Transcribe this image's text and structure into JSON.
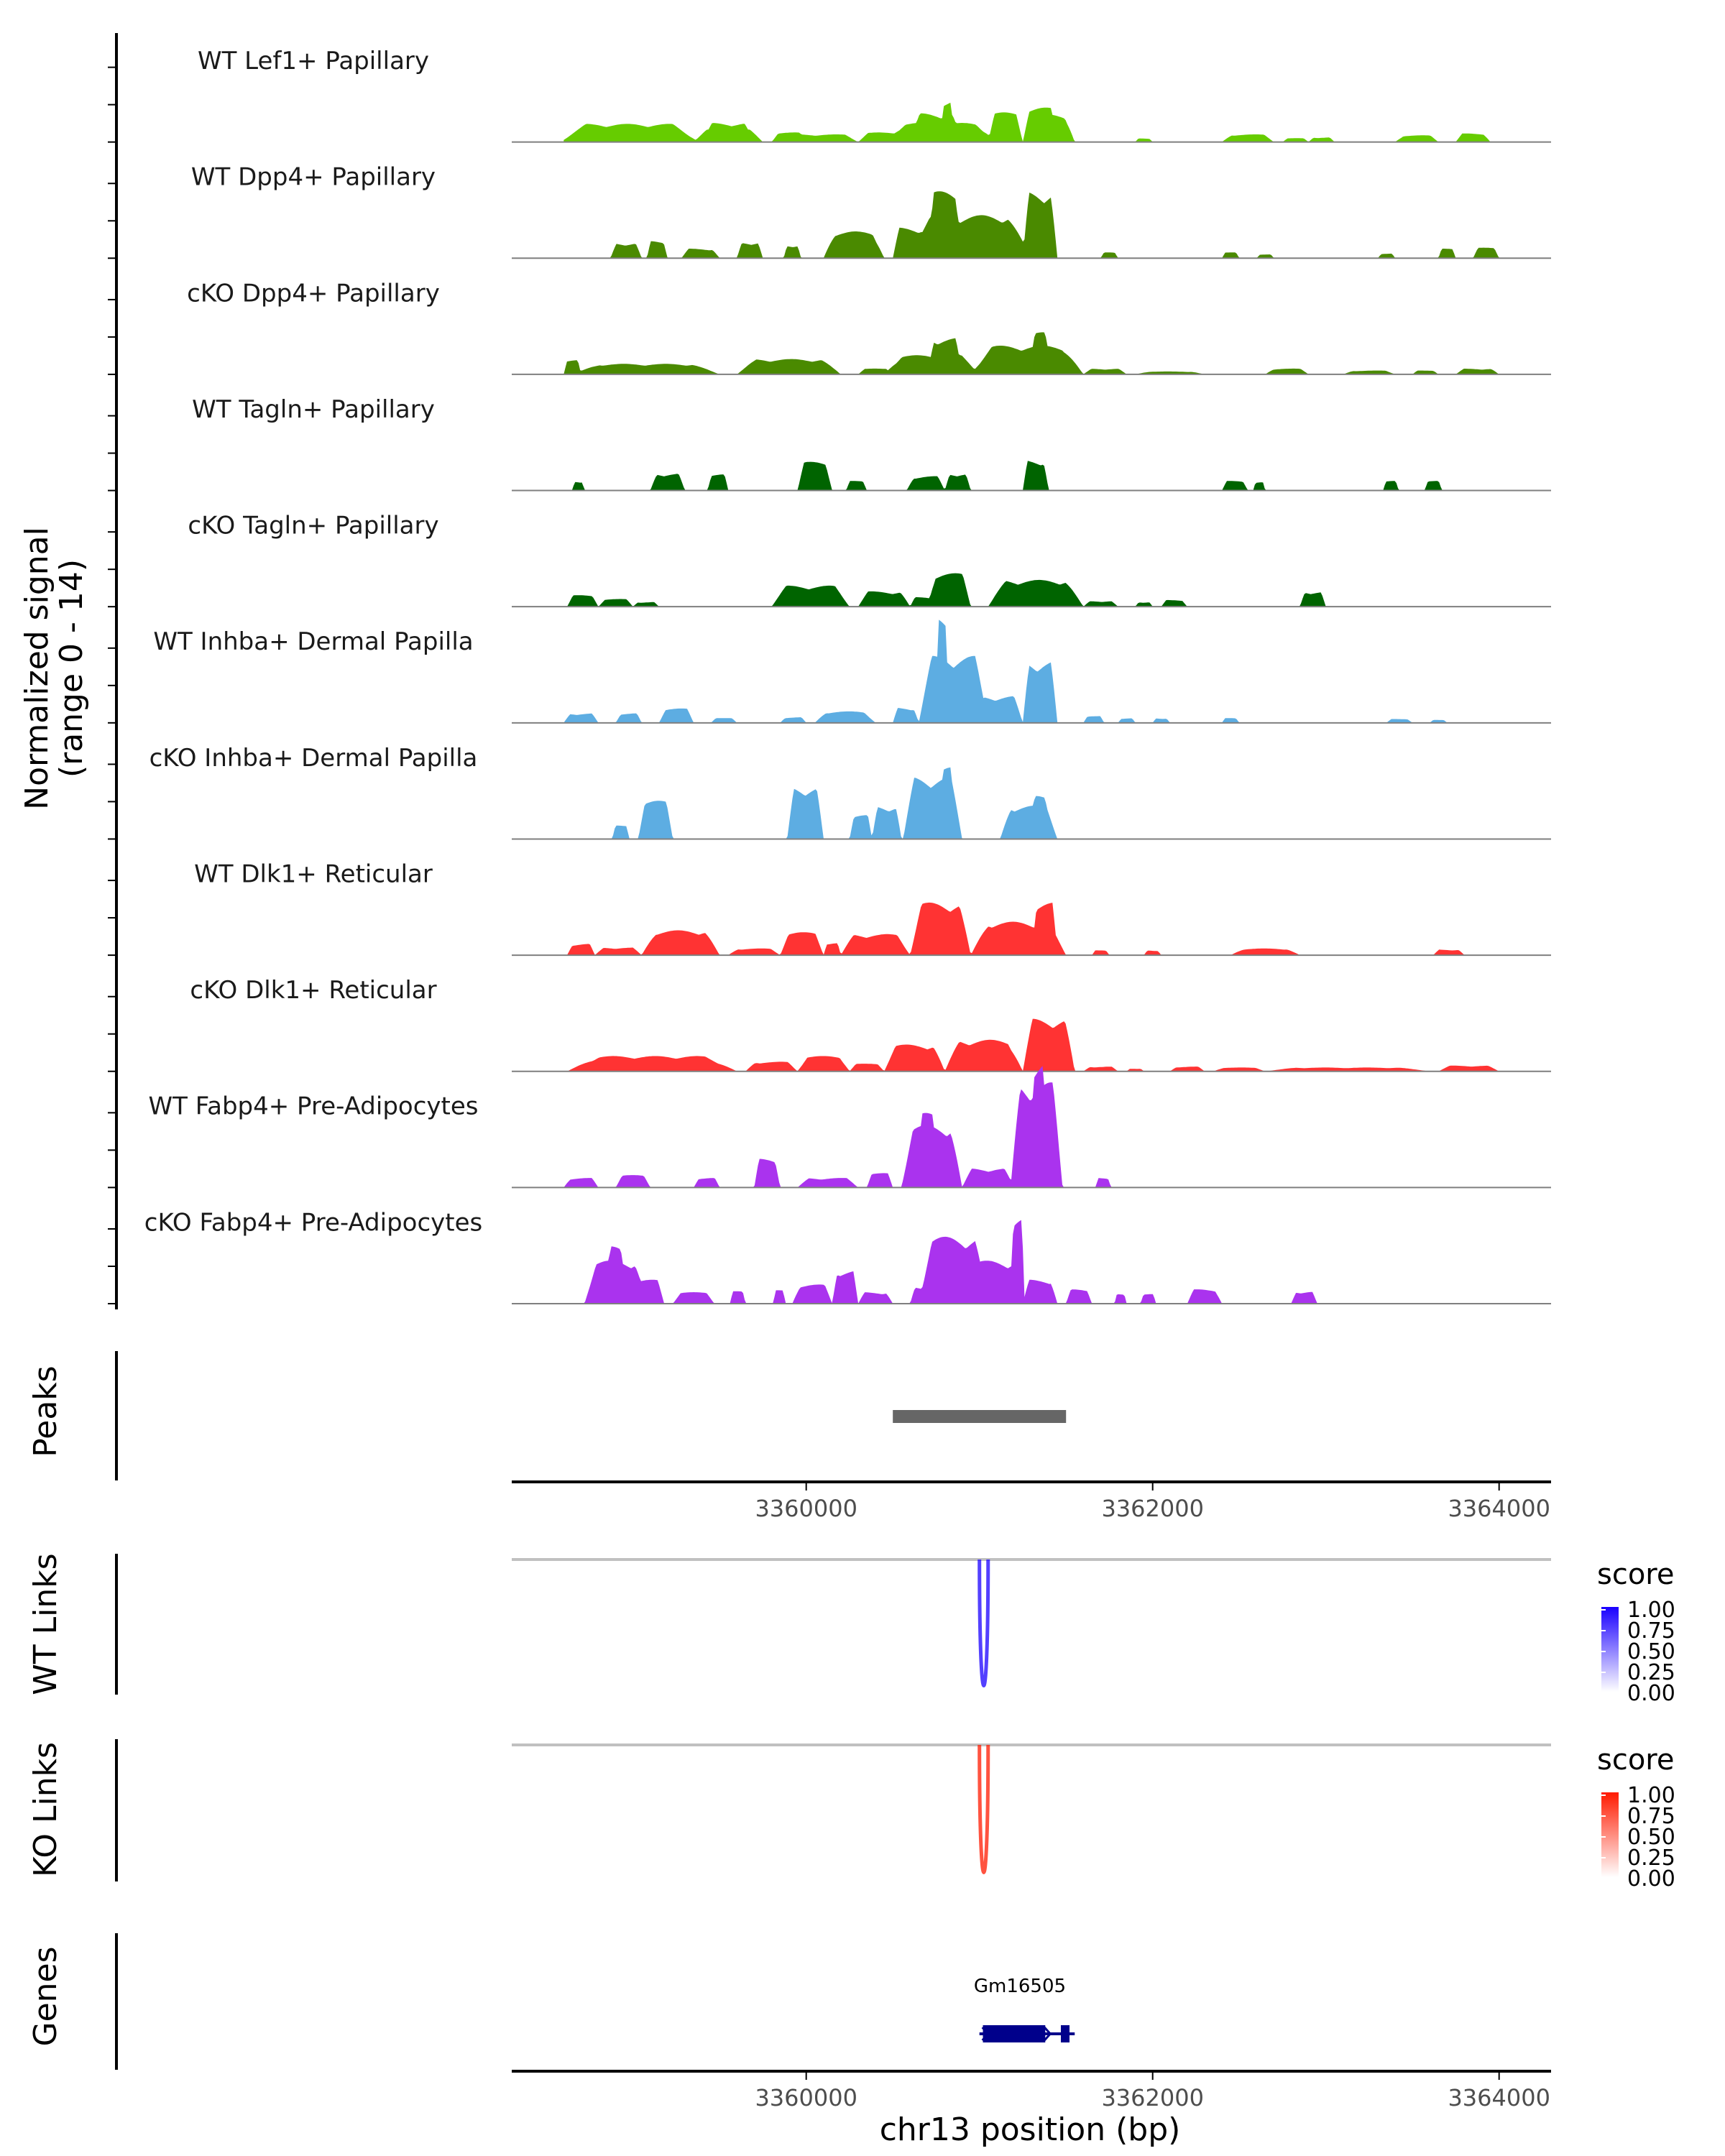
{
  "chart_data": {
    "type": "area",
    "title": "",
    "chromosome": "chr13",
    "xlabel": "chr13 position (bp)",
    "xlim": [
      3358300,
      3364300
    ],
    "xticks": [
      3360000,
      3362000,
      3364000
    ],
    "xtick_labels": [
      "3360000",
      "3362000",
      "3364000"
    ],
    "coverage": {
      "ylabel_line1": "Normalized signal",
      "ylabel_line2": "(range 0 - 14)",
      "ylim": [
        0,
        14
      ],
      "tracks": [
        {
          "name": "WT Lef1+ Papillary",
          "color": "#66CC00",
          "peaks": [
            [
              3358580,
              3359380,
              1.9
            ],
            [
              3359350,
              3359750,
              1.3
            ],
            [
              3359400,
              3359700,
              2.0
            ],
            [
              3359900,
              3360300,
              0.8
            ],
            [
              3359800,
              3360000,
              1.0
            ],
            [
              3360300,
              3360600,
              1.0
            ],
            [
              3360450,
              3361100,
              2.0
            ],
            [
              3360600,
              3360900,
              3.0
            ],
            [
              3360780,
              3360850,
              4.4
            ],
            [
              3361050,
              3361250,
              3.1
            ],
            [
              3361250,
              3361550,
              2.9
            ],
            [
              3361250,
              3361450,
              3.6
            ],
            [
              3361900,
              3362000,
              0.4
            ],
            [
              3362400,
              3362700,
              0.8
            ],
            [
              3362750,
              3362900,
              0.4
            ],
            [
              3362900,
              3363050,
              0.5
            ],
            [
              3363400,
              3363650,
              0.7
            ],
            [
              3363750,
              3363950,
              0.9
            ]
          ]
        },
        {
          "name": "WT Dpp4+ Papillary",
          "color": "#4A8A00",
          "peaks": [
            [
              3358870,
              3359050,
              1.6
            ],
            [
              3359080,
              3359200,
              1.8
            ],
            [
              3359280,
              3359500,
              1.0
            ],
            [
              3359600,
              3359750,
              1.7
            ],
            [
              3359870,
              3359970,
              1.4
            ],
            [
              3360100,
              3360450,
              2.8
            ],
            [
              3360500,
              3360700,
              3.2
            ],
            [
              3360580,
              3361300,
              4.5
            ],
            [
              3360700,
              3360900,
              7.0
            ],
            [
              3360900,
              3361100,
              3.7
            ],
            [
              3361250,
              3361450,
              7.0
            ],
            [
              3361700,
              3361800,
              0.6
            ],
            [
              3362400,
              3362500,
              0.6
            ],
            [
              3362600,
              3362700,
              0.4
            ],
            [
              3363300,
              3363400,
              0.5
            ],
            [
              3363650,
              3363750,
              1.0
            ],
            [
              3363850,
              3364000,
              1.1
            ]
          ]
        },
        {
          "name": "cKO Dpp4+ Papillary",
          "color": "#4A8A00",
          "peaks": [
            [
              3358600,
              3358700,
              1.5
            ],
            [
              3358650,
              3359500,
              1.1
            ],
            [
              3359600,
              3360200,
              1.6
            ],
            [
              3360300,
              3360500,
              0.6
            ],
            [
              3360450,
              3361000,
              2.0
            ],
            [
              3360700,
              3360900,
              3.8
            ],
            [
              3360950,
              3361600,
              3.0
            ],
            [
              3361300,
              3361400,
              4.4
            ],
            [
              3361600,
              3361850,
              0.6
            ],
            [
              3361900,
              3362300,
              0.3
            ],
            [
              3362650,
              3362900,
              0.6
            ],
            [
              3363100,
              3363400,
              0.4
            ],
            [
              3363500,
              3363650,
              0.4
            ],
            [
              3363750,
              3364000,
              0.6
            ]
          ]
        },
        {
          "name": "WT Tagln+ Papillary",
          "color": "#006400",
          "peaks": [
            [
              3358650,
              3358720,
              1.0
            ],
            [
              3359100,
              3359300,
              1.8
            ],
            [
              3359430,
              3359550,
              1.7
            ],
            [
              3359950,
              3360150,
              3.0
            ],
            [
              3360230,
              3360350,
              1.0
            ],
            [
              3360580,
              3360800,
              1.5
            ],
            [
              3360800,
              3360950,
              1.8
            ],
            [
              3361250,
              3361400,
              3.2
            ],
            [
              3362400,
              3362550,
              1.0
            ],
            [
              3362580,
              3362650,
              0.9
            ],
            [
              3363330,
              3363420,
              1.0
            ],
            [
              3363570,
              3363670,
              1.0
            ]
          ]
        },
        {
          "name": "cKO Tagln+ Papillary",
          "color": "#006400",
          "peaks": [
            [
              3358620,
              3358800,
              1.2
            ],
            [
              3358800,
              3359000,
              0.8
            ],
            [
              3359000,
              3359150,
              0.5
            ],
            [
              3359800,
              3360250,
              2.2
            ],
            [
              3360300,
              3360600,
              1.6
            ],
            [
              3360600,
              3360750,
              1.0
            ],
            [
              3360700,
              3360950,
              3.5
            ],
            [
              3361050,
              3361600,
              2.8
            ],
            [
              3361600,
              3361800,
              0.6
            ],
            [
              3361900,
              3362000,
              0.5
            ],
            [
              3362050,
              3362200,
              0.7
            ],
            [
              3362850,
              3363000,
              1.6
            ]
          ]
        },
        {
          "name": "WT Inhba+ Dermal Papilla",
          "color": "#5DADE2",
          "peaks": [
            [
              3358600,
              3358800,
              1.0
            ],
            [
              3358900,
              3359050,
              1.0
            ],
            [
              3359150,
              3359350,
              1.5
            ],
            [
              3359450,
              3359600,
              0.5
            ],
            [
              3359850,
              3360000,
              0.6
            ],
            [
              3360050,
              3360400,
              1.2
            ],
            [
              3360500,
              3360650,
              1.6
            ],
            [
              3360650,
              3361050,
              7.0
            ],
            [
              3360750,
              3360820,
              11.0
            ],
            [
              3360980,
              3361250,
              2.8
            ],
            [
              3361250,
              3361450,
              6.5
            ],
            [
              3361600,
              3361720,
              0.7
            ],
            [
              3361800,
              3361900,
              0.5
            ],
            [
              3362000,
              3362100,
              0.5
            ],
            [
              3362400,
              3362500,
              0.5
            ],
            [
              3363350,
              3363500,
              0.4
            ],
            [
              3363600,
              3363700,
              0.3
            ]
          ]
        },
        {
          "name": "cKO Inhba+ Dermal Papilla",
          "color": "#5DADE2",
          "peaks": [
            [
              3358880,
              3358980,
              1.4
            ],
            [
              3359030,
              3359230,
              4.0
            ],
            [
              3359890,
              3360100,
              5.5
            ],
            [
              3360250,
              3360380,
              2.5
            ],
            [
              3360380,
              3360550,
              3.5
            ],
            [
              3360560,
              3360900,
              6.5
            ],
            [
              3360780,
              3360850,
              7.5
            ],
            [
              3361120,
              3361450,
              3.5
            ],
            [
              3361300,
              3361400,
              4.5
            ]
          ]
        },
        {
          "name": "WT Dlk1+ Reticular",
          "color": "#FF3333",
          "peaks": [
            [
              3358620,
              3358780,
              1.2
            ],
            [
              3358780,
              3359050,
              0.8
            ],
            [
              3359050,
              3359500,
              2.6
            ],
            [
              3359550,
              3359850,
              0.7
            ],
            [
              3359850,
              3360100,
              2.4
            ],
            [
              3360100,
              3360200,
              1.3
            ],
            [
              3360200,
              3360600,
              2.2
            ],
            [
              3360600,
              3360950,
              5.5
            ],
            [
              3360950,
              3361500,
              3.5
            ],
            [
              3361300,
              3361450,
              5.5
            ],
            [
              3361650,
              3361750,
              0.5
            ],
            [
              3361950,
              3362050,
              0.5
            ],
            [
              3362450,
              3362850,
              0.7
            ],
            [
              3363620,
              3363800,
              0.6
            ]
          ]
        },
        {
          "name": "cKO Dlk1+ Reticular",
          "color": "#FF3333",
          "peaks": [
            [
              3358620,
              3359600,
              1.6
            ],
            [
              3359650,
              3359950,
              1.0
            ],
            [
              3359950,
              3360250,
              1.6
            ],
            [
              3360250,
              3360450,
              0.8
            ],
            [
              3360450,
              3360800,
              2.8
            ],
            [
              3360800,
              3361250,
              3.3
            ],
            [
              3361250,
              3361550,
              5.5
            ],
            [
              3361600,
              3361800,
              0.5
            ],
            [
              3361850,
              3361950,
              0.3
            ],
            [
              3362100,
              3362300,
              0.5
            ],
            [
              3362350,
              3362650,
              0.4
            ],
            [
              3362650,
              3363600,
              0.4
            ],
            [
              3363650,
              3364000,
              0.6
            ]
          ]
        },
        {
          "name": "WT Fabp4+ Pre-Adipocytes",
          "color": "#AA33EE",
          "peaks": [
            [
              3358600,
              3358800,
              1.0
            ],
            [
              3358900,
              3359100,
              1.3
            ],
            [
              3359350,
              3359500,
              1.0
            ],
            [
              3359700,
              3359850,
              3.0
            ],
            [
              3359950,
              3360300,
              1.0
            ],
            [
              3360350,
              3360500,
              1.5
            ],
            [
              3360550,
              3360900,
              6.5
            ],
            [
              3360650,
              3360750,
              7.8
            ],
            [
              3360900,
              3361200,
              2.0
            ],
            [
              3361180,
              3361480,
              11.0
            ],
            [
              3361300,
              3361380,
              13.2
            ],
            [
              3361670,
              3361760,
              1.0
            ]
          ]
        },
        {
          "name": "cKO Fabp4+ Pre-Adipocytes",
          "color": "#AA33EE",
          "peaks": [
            [
              3358720,
              3359080,
              4.5
            ],
            [
              3358850,
              3358950,
              6.0
            ],
            [
              3358980,
              3359180,
              2.5
            ],
            [
              3359230,
              3359470,
              1.2
            ],
            [
              3359560,
              3359650,
              1.3
            ],
            [
              3359810,
              3359880,
              1.4
            ],
            [
              3359920,
              3360150,
              2.0
            ],
            [
              3360150,
              3360300,
              3.5
            ],
            [
              3360300,
              3360500,
              1.2
            ],
            [
              3360600,
              3360750,
              1.8
            ],
            [
              3360650,
              3361050,
              7.0
            ],
            [
              3360950,
              3361250,
              4.5
            ],
            [
              3361180,
              3361260,
              9.0
            ],
            [
              3361250,
              3361450,
              2.5
            ],
            [
              3361500,
              3361650,
              1.5
            ],
            [
              3361780,
              3361850,
              1.0
            ],
            [
              3361930,
              3362020,
              1.0
            ],
            [
              3362200,
              3362400,
              1.5
            ],
            [
              3362800,
              3362950,
              1.3
            ]
          ]
        }
      ]
    },
    "peaks_track": {
      "ylabel": "Peaks",
      "regions": [
        [
          3360500,
          3361500
        ]
      ],
      "color": "#666666"
    },
    "links": [
      {
        "ylabel": "WT Links",
        "arcs": [
          [
            3361000,
            3361050,
            1.0
          ]
        ],
        "legend": {
          "title": "score",
          "color_low": "#FFFFFF",
          "color_high": "#1A00FF",
          "ticks": [
            "1.00",
            "0.75",
            "0.50",
            "0.25",
            "0.00"
          ]
        }
      },
      {
        "ylabel": "KO Links",
        "arcs": [
          [
            3361000,
            3361050,
            1.0
          ]
        ],
        "legend": {
          "title": "score",
          "color_low": "#FFFFFF",
          "color_high": "#FF1A00",
          "ticks": [
            "1.00",
            "0.75",
            "0.50",
            "0.25",
            "0.00"
          ]
        }
      }
    ],
    "genes": {
      "ylabel": "Genes",
      "items": [
        {
          "name": "Gm16505",
          "start": 3361000,
          "end": 3361550,
          "exons": [
            [
              3361020,
              3361380
            ],
            [
              3361470,
              3361520
            ]
          ],
          "strand": "+",
          "color": "#00008B"
        }
      ]
    }
  }
}
